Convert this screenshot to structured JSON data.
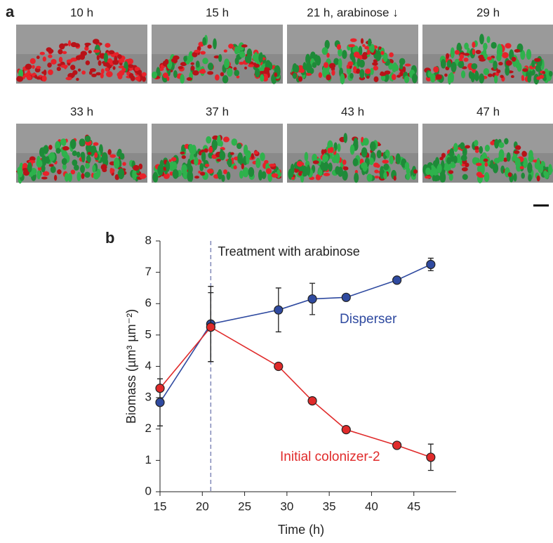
{
  "panel_a": {
    "label": "a",
    "images": [
      {
        "label": "10 h"
      },
      {
        "label": "15 h"
      },
      {
        "label": "21 h, arabinose ↓"
      },
      {
        "label": "29 h"
      },
      {
        "label": "33 h"
      },
      {
        "label": "37 h"
      },
      {
        "label": "43 h"
      },
      {
        "label": "47 h"
      }
    ]
  },
  "panel_b": {
    "label": "b"
  },
  "chart_data": {
    "type": "line",
    "x_label": "Time (h)",
    "y_label": "Biomass (µm³ µm⁻²)",
    "annotation": {
      "text": "Treatment with arabinose",
      "x": 21
    },
    "xlim": [
      15,
      50
    ],
    "ylim": [
      0,
      8
    ],
    "xticks": [
      15,
      20,
      25,
      30,
      35,
      40,
      45
    ],
    "yticks": [
      0,
      1,
      2,
      3,
      4,
      5,
      6,
      7,
      8
    ],
    "x": [
      15,
      21,
      29,
      33,
      37,
      43,
      47
    ],
    "series": [
      {
        "name": "Disperser",
        "color": "#2f4aa0",
        "values": [
          2.85,
          5.35,
          5.8,
          6.15,
          6.2,
          6.75,
          7.25
        ],
        "errors": [
          0.75,
          1.2,
          0.7,
          0.5,
          0.1,
          0.05,
          0.2
        ]
      },
      {
        "name": "Initial colonizer-2",
        "color": "#e02a2a",
        "values": [
          3.3,
          5.25,
          4.0,
          2.9,
          1.98,
          1.48,
          1.1
        ],
        "errors": [
          0.3,
          1.1,
          0.1,
          0.1,
          0.1,
          0.1,
          0.42
        ]
      }
    ]
  }
}
